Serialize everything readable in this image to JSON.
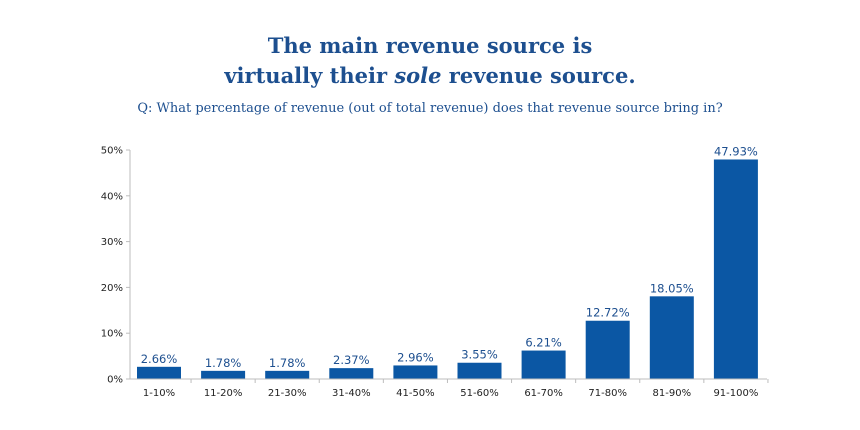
{
  "header": {
    "title_line1": "The main revenue source is",
    "title_line2_prefix": "virtually their ",
    "title_line2_emphasis": "sole",
    "title_line2_suffix": " revenue source.",
    "subtitle": "Q: What percentage of revenue (out of total revenue) does that revenue source bring in?"
  },
  "chart_data": {
    "type": "bar",
    "categories": [
      "1-10%",
      "11-20%",
      "21-30%",
      "31-40%",
      "41-50%",
      "51-60%",
      "61-70%",
      "71-80%",
      "81-90%",
      "91-100%"
    ],
    "values": [
      2.66,
      1.78,
      1.78,
      2.37,
      2.96,
      3.55,
      6.21,
      12.72,
      18.05,
      47.93
    ],
    "value_labels": [
      "2.66%",
      "1.78%",
      "1.78%",
      "2.37%",
      "2.96%",
      "3.55%",
      "6.21%",
      "12.72%",
      "18.05%",
      "47.93%"
    ],
    "yticks": [
      0,
      10,
      20,
      30,
      40,
      50
    ],
    "ytick_labels": [
      "0%",
      "10%",
      "20%",
      "30%",
      "40%",
      "50%"
    ],
    "ylim": [
      0,
      50
    ],
    "grid": false,
    "bar_color": "#0b57a4",
    "title": "The main revenue source is virtually their sole revenue source.",
    "xlabel": "",
    "ylabel": ""
  }
}
